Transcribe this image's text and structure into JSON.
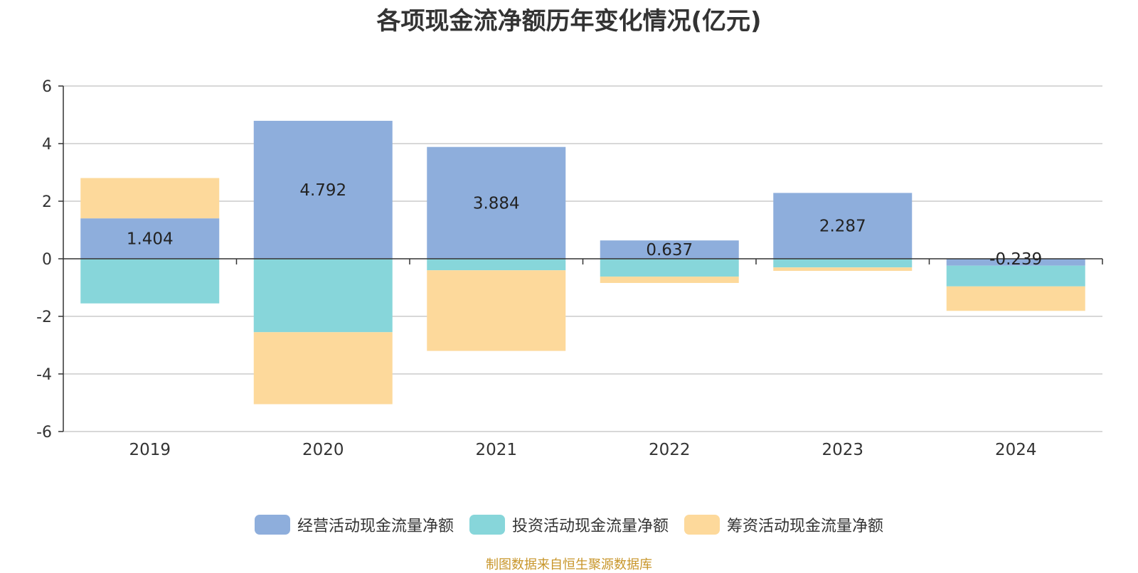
{
  "title": "各项现金流净额历年变化情况(亿元)",
  "source_note": "制图数据来自恒生聚源数据库",
  "colors": {
    "operating": "#8eaedc",
    "investing": "#87d6da",
    "financing": "#fdd99b",
    "grid": "#cccccc",
    "axis": "#333333",
    "text": "#333333",
    "source": "#c8962b"
  },
  "chart_data": {
    "type": "bar",
    "stacked": true,
    "categories": [
      "2019",
      "2020",
      "2021",
      "2022",
      "2023",
      "2024"
    ],
    "series": [
      {
        "name": "经营活动现金流量净额",
        "color_key": "operating",
        "values": [
          1.404,
          4.792,
          3.884,
          0.637,
          2.287,
          -0.239
        ]
      },
      {
        "name": "投资活动现金流量净额",
        "color_key": "investing",
        "values": [
          -1.55,
          -2.55,
          -0.4,
          -0.62,
          -0.3,
          -0.72
        ]
      },
      {
        "name": "筹资活动现金流量净额",
        "color_key": "financing",
        "values": [
          1.4,
          -2.5,
          -2.8,
          -0.22,
          -0.12,
          -0.85
        ]
      }
    ],
    "data_labels": [
      "1.404",
      "4.792",
      "3.884",
      "0.637",
      "2.287",
      "-0.239"
    ],
    "y_ticks": [
      "6",
      "4",
      "2",
      "0",
      "-2",
      "-4",
      "-6"
    ],
    "ylim": [
      -6,
      6
    ],
    "grid": true,
    "legend_position": "bottom-center"
  }
}
